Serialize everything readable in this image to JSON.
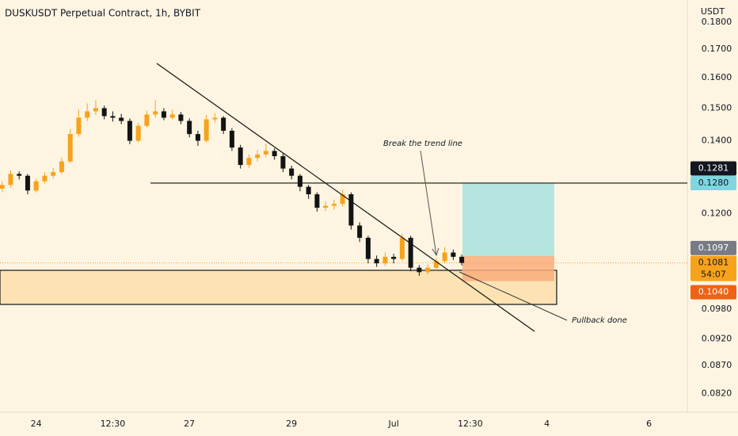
{
  "chart_data": {
    "type": "candlestick",
    "title": "DUSKUSDT Perpetual Contract, 1h, BYBIT",
    "y_unit": "USDT",
    "log_scale": true,
    "grid": false,
    "up_color": "#f7a21b",
    "down_color": "#131313",
    "x": [
      -16,
      -12,
      -8,
      -4,
      0,
      4,
      8,
      12,
      16,
      20,
      24,
      28,
      32,
      36,
      40,
      44,
      48,
      52,
      56,
      60,
      64,
      68,
      72,
      76,
      80,
      84,
      88,
      92,
      96,
      100,
      104,
      108,
      112,
      116,
      120,
      124,
      128,
      132,
      136,
      140,
      144,
      148,
      152,
      156,
      160,
      164,
      168,
      172,
      176,
      180,
      184,
      188,
      192,
      196,
      200
    ],
    "open": [
      0.1265,
      0.1275,
      0.1305,
      0.13,
      0.126,
      0.1285,
      0.13,
      0.131,
      0.134,
      0.142,
      0.147,
      0.149,
      0.15,
      0.1475,
      0.147,
      0.146,
      0.14,
      0.1445,
      0.148,
      0.149,
      0.147,
      0.148,
      0.146,
      0.142,
      0.14,
      0.1465,
      0.147,
      0.143,
      0.138,
      0.133,
      0.135,
      0.136,
      0.137,
      0.1355,
      0.132,
      0.13,
      0.127,
      0.125,
      0.1215,
      0.122,
      0.1225,
      0.125,
      0.117,
      0.114,
      0.109,
      0.108,
      0.1095,
      0.109,
      0.114,
      0.107,
      0.106,
      0.107,
      0.1085,
      0.1105,
      0.1095
    ],
    "high": [
      0.1285,
      0.1315,
      0.1312,
      0.1305,
      0.1292,
      0.131,
      0.1322,
      0.1352,
      0.1435,
      0.1495,
      0.1515,
      0.1525,
      0.1508,
      0.149,
      0.1482,
      0.1468,
      0.1455,
      0.1492,
      0.1525,
      0.15,
      0.1495,
      0.1488,
      0.1468,
      0.143,
      0.1478,
      0.1485,
      0.1475,
      0.1438,
      0.1388,
      0.136,
      0.1372,
      0.1392,
      0.1378,
      0.1362,
      0.1328,
      0.1305,
      0.1275,
      0.1255,
      0.1232,
      0.1236,
      0.1262,
      0.1255,
      0.1178,
      0.1145,
      0.1098,
      0.1105,
      0.1102,
      0.115,
      0.1145,
      0.1076,
      0.1078,
      0.1092,
      0.1118,
      0.1112,
      0.11
    ],
    "low": [
      0.1255,
      0.1268,
      0.129,
      0.125,
      0.1255,
      0.1278,
      0.1292,
      0.1305,
      0.1335,
      0.1412,
      0.146,
      0.1478,
      0.1465,
      0.1458,
      0.145,
      0.139,
      0.1395,
      0.144,
      0.147,
      0.1462,
      0.1465,
      0.145,
      0.141,
      0.1385,
      0.1395,
      0.1455,
      0.142,
      0.137,
      0.132,
      0.1322,
      0.134,
      0.1352,
      0.1345,
      0.131,
      0.129,
      0.1258,
      0.1238,
      0.1205,
      0.1206,
      0.121,
      0.1218,
      0.116,
      0.113,
      0.108,
      0.1072,
      0.1074,
      0.108,
      0.1085,
      0.1062,
      0.1052,
      0.1055,
      0.1064,
      0.108,
      0.1088,
      0.1075
    ],
    "close": [
      0.1275,
      0.1305,
      0.13,
      0.126,
      0.1285,
      0.13,
      0.131,
      0.134,
      0.142,
      0.147,
      0.149,
      0.15,
      0.1475,
      0.147,
      0.146,
      0.14,
      0.1445,
      0.148,
      0.149,
      0.147,
      0.148,
      0.146,
      0.142,
      0.14,
      0.1465,
      0.147,
      0.143,
      0.138,
      0.133,
      0.135,
      0.136,
      0.137,
      0.1355,
      0.132,
      0.13,
      0.127,
      0.125,
      0.1215,
      0.122,
      0.1225,
      0.125,
      0.117,
      0.114,
      0.109,
      0.108,
      0.1095,
      0.109,
      0.114,
      0.107,
      0.106,
      0.107,
      0.1085,
      0.1105,
      0.1095,
      0.1081
    ],
    "xlim": [
      -17,
      306
    ],
    "ylim": [
      0.0788,
      0.1886
    ],
    "xticks": [
      {
        "value": 0,
        "label": "24"
      },
      {
        "value": 36,
        "label": "12:30"
      },
      {
        "value": 72,
        "label": "27"
      },
      {
        "value": 120,
        "label": "29"
      },
      {
        "value": 168,
        "label": "Jul"
      },
      {
        "value": 204,
        "label": "12:30"
      },
      {
        "value": 240,
        "label": "4"
      },
      {
        "value": 288,
        "label": "6"
      }
    ],
    "yticks": [
      {
        "value": 0.18,
        "label": "0.1800"
      },
      {
        "value": 0.17,
        "label": "0.1700"
      },
      {
        "value": 0.16,
        "label": "0.1600"
      },
      {
        "value": 0.15,
        "label": "0.1500"
      },
      {
        "value": 0.14,
        "label": "0.1400"
      },
      {
        "value": 0.12,
        "label": "0.1200"
      },
      {
        "value": 0.098,
        "label": "0.0980"
      },
      {
        "value": 0.092,
        "label": "0.0920"
      },
      {
        "value": 0.087,
        "label": "0.0870"
      },
      {
        "value": 0.082,
        "label": "0.0820"
      }
    ],
    "price_levels": [
      {
        "value": 0.1281,
        "label": "0.1281",
        "color": "#131722",
        "text_color": "#ffffff"
      },
      {
        "value": 0.128,
        "label": "0.1280",
        "color": "#7fd6df",
        "text_color": "#131722"
      },
      {
        "value": 0.1097,
        "label": "0.1097",
        "color": "#787b86",
        "text_color": "#ffffff"
      },
      {
        "value": 0.1081,
        "label": "0.1081",
        "color": "#f7a21b",
        "text_color": "#131722",
        "countdown": "54:07"
      },
      {
        "value": 0.104,
        "label": "0.1040",
        "color": "#ef6214",
        "text_color": "#ffffff"
      }
    ],
    "annotations": [
      "Break the trend line",
      "Pullback done"
    ]
  }
}
